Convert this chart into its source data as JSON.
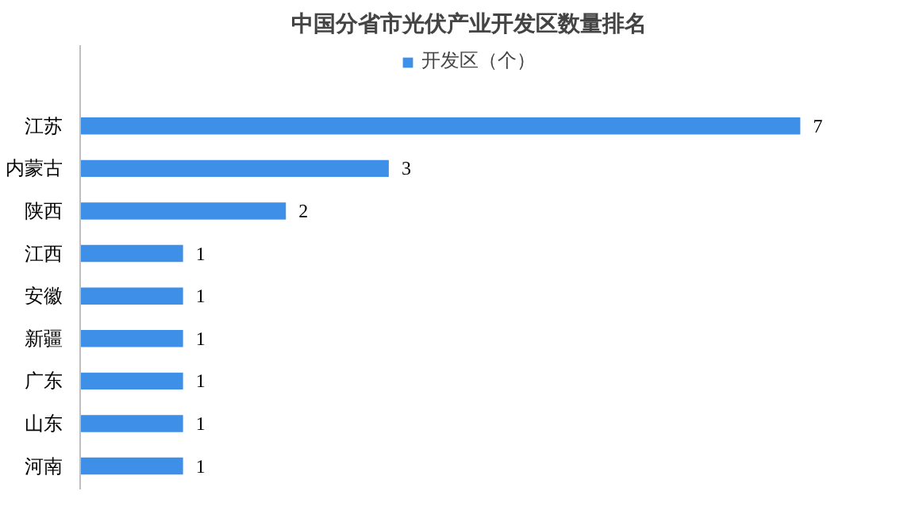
{
  "chart_data": {
    "type": "bar",
    "orientation": "horizontal",
    "title": "中国分省市光伏产业开发区数量排名",
    "categories": [
      "江苏",
      "内蒙古",
      "陕西",
      "江西",
      "安徽",
      "新疆",
      "广东",
      "山东",
      "河南"
    ],
    "series": [
      {
        "name": "开发区（个）",
        "color": "#3d8fe8",
        "values": [
          7,
          3,
          2,
          1,
          1,
          1,
          1,
          1,
          1
        ]
      }
    ],
    "data_labels": true,
    "legend": "top",
    "grid": false
  }
}
